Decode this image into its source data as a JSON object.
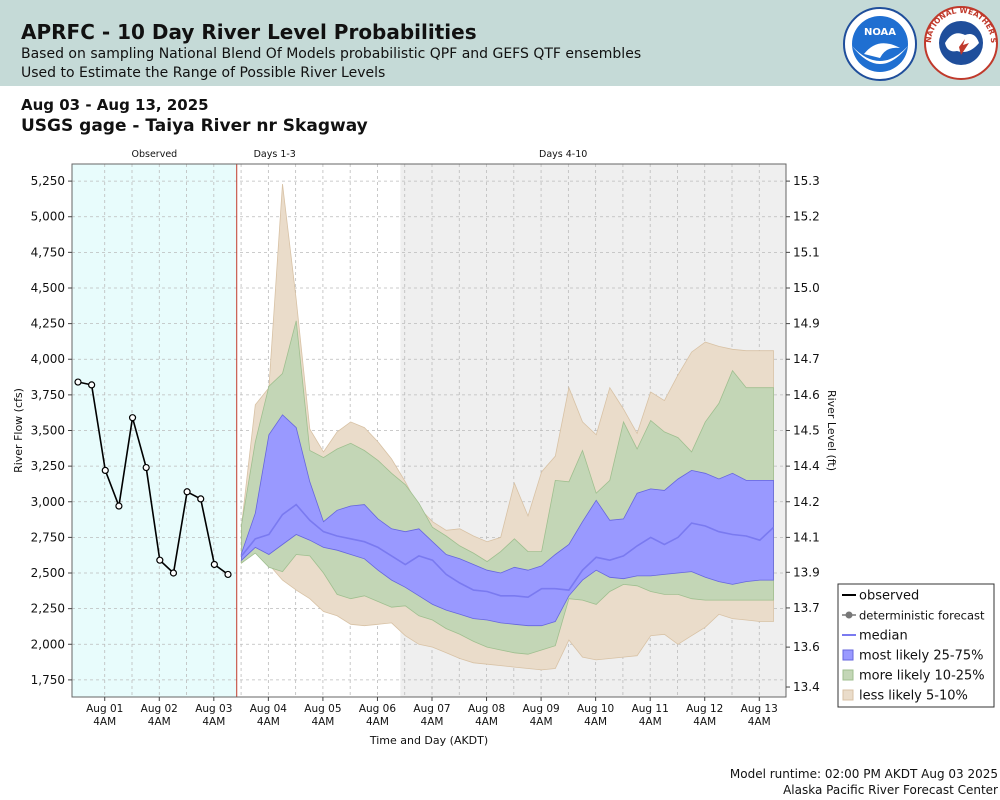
{
  "header": {
    "title": "APRFC - 10 Day River Level Probabilities",
    "subtitle1": "Based on sampling National Blend Of Models probabilistic QPF and GEFS QTF ensembles",
    "subtitle2": "Used to Estimate the Range of Possible River Levels",
    "noaa_text": "NOAA",
    "nws_text": "NATIONAL WEATHER SERVICE"
  },
  "date_range": "Aug 03 - Aug 13, 2025",
  "gage_title": "USGS gage - Taiya River nr Skagway",
  "footer": {
    "runtime": "Model runtime: 02:00 PM AKDT Aug 03 2025",
    "center": "Alaska Pacific River Forecast Center"
  },
  "colors": {
    "observed_bg": "#e8fcfc",
    "days4_10_bg": "#efefef",
    "forecast_line": "#c0392b",
    "less_likely": "#eadcca",
    "more_likely": "#c3d6b6",
    "most_likely": "#9999ff",
    "median": "#7a7af0",
    "observed_line": "#000000"
  },
  "chart_data": {
    "type": "line",
    "xlabel": "Time and Day (AKDT)",
    "ylabel": "River Flow (cfs)",
    "ylabel_right": "River Level (ft)",
    "ylim": [
      1630,
      5370
    ],
    "y_ticks": [
      1750,
      2000,
      2250,
      2500,
      2750,
      3000,
      3250,
      3500,
      3750,
      4000,
      4250,
      4500,
      4750,
      5000,
      5250
    ],
    "y_tick_labels": [
      "1,750",
      "2,000",
      "2,250",
      "2,500",
      "2,750",
      "3,000",
      "3,250",
      "3,500",
      "3,750",
      "4,000",
      "4,250",
      "4,500",
      "4,750",
      "5,000",
      "5,250"
    ],
    "y_right_ticks": [
      {
        "label": "13.4",
        "flow": 1700
      },
      {
        "label": "13.6",
        "flow": 1980
      },
      {
        "label": "13.7",
        "flow": 2255
      },
      {
        "label": "13.9",
        "flow": 2505
      },
      {
        "label": "14.1",
        "flow": 2750
      },
      {
        "label": "14.2",
        "flow": 3000
      },
      {
        "label": "14.4",
        "flow": 3250
      },
      {
        "label": "14.5",
        "flow": 3500
      },
      {
        "label": "14.6",
        "flow": 3750
      },
      {
        "label": "14.7",
        "flow": 4000
      },
      {
        "label": "14.9",
        "flow": 4250
      },
      {
        "label": "15.0",
        "flow": 4500
      },
      {
        "label": "15.1",
        "flow": 4750
      },
      {
        "label": "15.2",
        "flow": 5000
      },
      {
        "label": "15.3",
        "flow": 5250
      }
    ],
    "x_range_days": [
      -3.1,
      9.99
    ],
    "x_ticks": [
      {
        "day": -2.5,
        "label1": "Aug 01",
        "label2": "4AM"
      },
      {
        "day": -1.5,
        "label1": "Aug 02",
        "label2": "4AM"
      },
      {
        "day": -0.5,
        "label1": "Aug 03",
        "label2": "4AM"
      },
      {
        "day": 0.5,
        "label1": "Aug 04",
        "label2": "4AM"
      },
      {
        "day": 1.5,
        "label1": "Aug 05",
        "label2": "4AM"
      },
      {
        "day": 2.5,
        "label1": "Aug 06",
        "label2": "4AM"
      },
      {
        "day": 3.5,
        "label1": "Aug 07",
        "label2": "4AM"
      },
      {
        "day": 4.5,
        "label1": "Aug 08",
        "label2": "4AM"
      },
      {
        "day": 5.5,
        "label1": "Aug 09",
        "label2": "4AM"
      },
      {
        "day": 6.5,
        "label1": "Aug 10",
        "label2": "4AM"
      },
      {
        "day": 7.5,
        "label1": "Aug 11",
        "label2": "4AM"
      },
      {
        "day": 8.5,
        "label1": "Aug 12",
        "label2": "4AM"
      },
      {
        "day": 9.5,
        "label1": "Aug 13",
        "label2": "4AM"
      }
    ],
    "regions": [
      {
        "name": "Observed",
        "start": -3.1,
        "end": -0.08
      },
      {
        "name": "Days 1-3",
        "start": -0.08,
        "end": 2.92
      },
      {
        "name": "Days 4-10",
        "start": 2.92,
        "end": 9.99
      }
    ],
    "forecast_start": -0.08,
    "observed": {
      "x": [
        -2.99,
        -2.74,
        -2.49,
        -2.24,
        -1.99,
        -1.74,
        -1.49,
        -1.24,
        -0.99,
        -0.74,
        -0.49,
        -0.24
      ],
      "y": [
        3840,
        3820,
        3220,
        2970,
        3590,
        3240,
        2590,
        2500,
        3070,
        3020,
        2560,
        2490
      ]
    },
    "forecast_x": [
      0.01,
      0.26,
      0.51,
      0.76,
      1.01,
      1.26,
      1.51,
      1.76,
      2.01,
      2.26,
      2.51,
      2.76,
      3.01,
      3.26,
      3.51,
      3.76,
      4.01,
      4.26,
      4.51,
      4.76,
      5.01,
      5.26,
      5.51,
      5.76,
      6.01,
      6.26,
      6.51,
      6.76,
      7.01,
      7.26,
      7.51,
      7.76,
      8.01,
      8.26,
      8.51,
      8.76,
      9.01,
      9.26,
      9.51,
      9.76
    ],
    "less_likely_upper": [
      2840,
      3680,
      3800,
      5230,
      4420,
      3510,
      3350,
      3490,
      3560,
      3520,
      3420,
      3300,
      3140,
      2960,
      2860,
      2800,
      2810,
      2760,
      2720,
      2750,
      3130,
      2900,
      3210,
      3320,
      3800,
      3560,
      3470,
      3800,
      3650,
      3480,
      3770,
      3710,
      3890,
      4050,
      4120,
      4090,
      4070,
      4060,
      4060,
      4060
    ],
    "less_likely_lower": [
      2570,
      2650,
      2560,
      2450,
      2380,
      2320,
      2230,
      2200,
      2140,
      2130,
      2140,
      2150,
      2060,
      2000,
      1980,
      1940,
      1900,
      1870,
      1860,
      1850,
      1840,
      1830,
      1820,
      1830,
      2030,
      1910,
      1890,
      1900,
      1910,
      1920,
      2060,
      2070,
      2000,
      2060,
      2120,
      2210,
      2180,
      2170,
      2160,
      2160
    ],
    "more_likely_upper": [
      2840,
      3420,
      3810,
      3900,
      4270,
      3360,
      3310,
      3370,
      3410,
      3360,
      3290,
      3200,
      3120,
      2990,
      2820,
      2760,
      2690,
      2640,
      2580,
      2650,
      2740,
      2650,
      2650,
      3150,
      3140,
      3360,
      3060,
      3150,
      3560,
      3370,
      3570,
      3490,
      3450,
      3350,
      3560,
      3690,
      3920,
      3800,
      3800,
      3800
    ],
    "more_likely_lower": [
      2570,
      2640,
      2540,
      2510,
      2630,
      2620,
      2500,
      2350,
      2320,
      2340,
      2300,
      2260,
      2270,
      2200,
      2170,
      2110,
      2070,
      2020,
      1980,
      1960,
      1940,
      1930,
      1960,
      1990,
      2320,
      2310,
      2280,
      2370,
      2420,
      2410,
      2370,
      2350,
      2350,
      2320,
      2310,
      2310,
      2310,
      2310,
      2310,
      2310
    ],
    "most_likely_upper": [
      2640,
      2920,
      3470,
      3610,
      3520,
      3140,
      2860,
      2940,
      2970,
      2980,
      2880,
      2810,
      2790,
      2810,
      2720,
      2630,
      2600,
      2560,
      2520,
      2500,
      2540,
      2520,
      2550,
      2630,
      2700,
      2860,
      3010,
      2870,
      2880,
      3060,
      3090,
      3080,
      3160,
      3220,
      3200,
      3160,
      3200,
      3150,
      3150,
      3150
    ],
    "most_likely_lower": [
      2590,
      2680,
      2630,
      2700,
      2770,
      2730,
      2680,
      2660,
      2630,
      2600,
      2520,
      2450,
      2400,
      2340,
      2280,
      2240,
      2210,
      2180,
      2170,
      2150,
      2140,
      2130,
      2130,
      2160,
      2340,
      2450,
      2520,
      2470,
      2460,
      2480,
      2480,
      2490,
      2500,
      2510,
      2470,
      2440,
      2420,
      2440,
      2450,
      2450
    ],
    "median": [
      2620,
      2740,
      2770,
      2910,
      2980,
      2870,
      2790,
      2760,
      2740,
      2720,
      2680,
      2620,
      2560,
      2620,
      2590,
      2490,
      2430,
      2380,
      2370,
      2340,
      2340,
      2330,
      2390,
      2390,
      2380,
      2520,
      2610,
      2590,
      2620,
      2690,
      2750,
      2700,
      2750,
      2850,
      2830,
      2790,
      2770,
      2760,
      2730,
      2820
    ]
  },
  "legend": {
    "items": [
      {
        "label": "observed",
        "kind": "line",
        "color": "#000000"
      },
      {
        "label": "deterministic forecast",
        "kind": "dot",
        "color": "#777777"
      },
      {
        "label": "median",
        "kind": "line",
        "color": "#7a7af0"
      },
      {
        "label": "most likely 25-75%",
        "kind": "box",
        "color": "#9999ff",
        "stroke": "#6666dd"
      },
      {
        "label": "more likely 10-25%",
        "kind": "box",
        "color": "#c3d6b6",
        "stroke": "#9fbf8f"
      },
      {
        "label": "less likely 5-10%",
        "kind": "box",
        "color": "#eadcca",
        "stroke": "#d8c2a5"
      }
    ]
  }
}
